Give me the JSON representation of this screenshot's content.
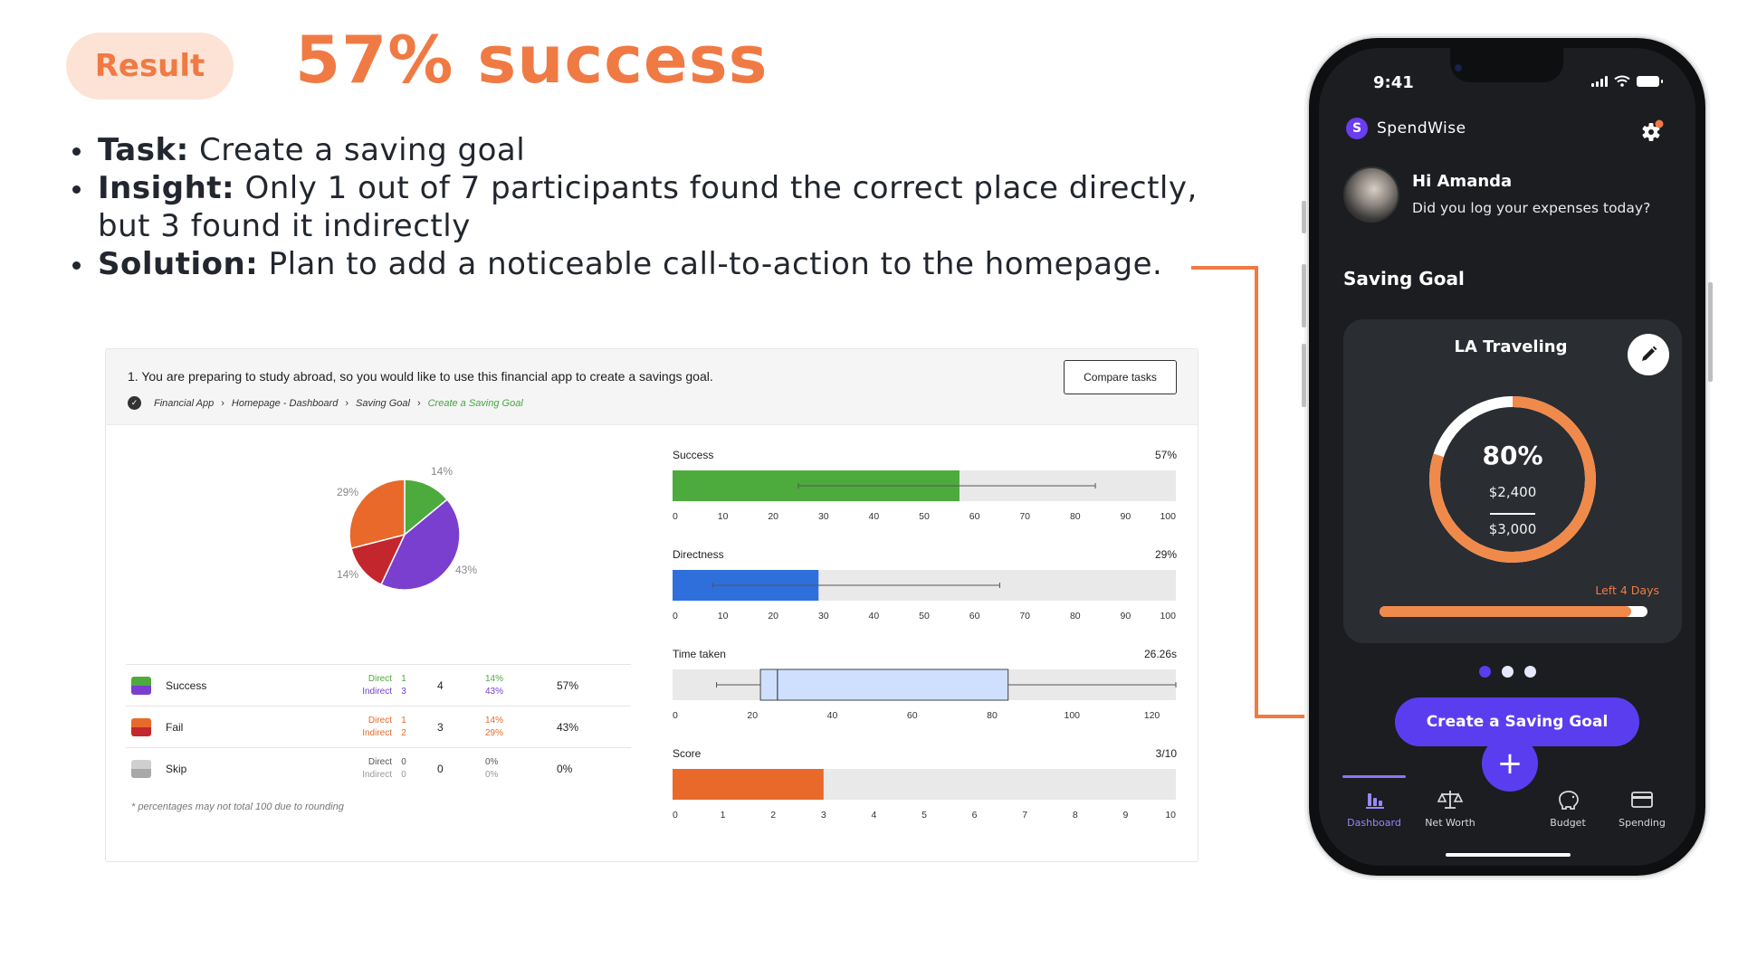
{
  "header": {
    "pill": "Result",
    "headline": "57% success"
  },
  "bullets": [
    {
      "label": "Task:",
      "text": " Create a saving goal"
    },
    {
      "label": "Insight:",
      "text": " Only 1 out of 7 participants found the correct place directly, but 3 found it indirectly"
    },
    {
      "label": "Solution:",
      "text": " Plan to add a noticeable call-to-action to the homepage."
    }
  ],
  "report": {
    "question": "1. You are preparing to study abroad, so you would like to use this financial app to create a savings goal.",
    "compare_label": "Compare tasks",
    "breadcrumb": [
      "Financial App",
      "Homepage - Dashboard",
      "Saving Goal",
      "Create a Saving Goal"
    ],
    "table": [
      {
        "name": "Success",
        "color_top": "#4daa3d",
        "color_bottom": "#7a3fcf",
        "direct_label": "Direct",
        "indirect_label": "Indirect",
        "direct_count": "1",
        "indirect_count": "3",
        "total": "4",
        "direct_pct": "14%",
        "indirect_pct": "43%",
        "overall": "57%",
        "direct_color": "#4daa3d",
        "indirect_color": "#7a3fcf"
      },
      {
        "name": "Fail",
        "color_top": "#e8692a",
        "color_bottom": "#c4262e",
        "direct_label": "Direct",
        "indirect_label": "Indirect",
        "direct_count": "1",
        "indirect_count": "2",
        "total": "3",
        "direct_pct": "14%",
        "indirect_pct": "29%",
        "overall": "43%",
        "direct_color": "#e8692a",
        "indirect_color": "#e8692a"
      },
      {
        "name": "Skip",
        "color_top": "#cfcfcf",
        "color_bottom": "#a8a8a8",
        "direct_label": "Direct",
        "indirect_label": "Indirect",
        "direct_count": "0",
        "indirect_count": "0",
        "total": "0",
        "direct_pct": "0%",
        "indirect_pct": "0%",
        "overall": "0%",
        "direct_color": "#555555",
        "indirect_color": "#999999"
      }
    ],
    "note": "* percentages may not total 100 due to rounding",
    "metrics": {
      "success": {
        "label": "Success",
        "value": "57%"
      },
      "directness": {
        "label": "Directness",
        "value": "29%"
      },
      "time": {
        "label": "Time taken",
        "value": "26.26s"
      },
      "score": {
        "label": "Score",
        "value": "3/10"
      }
    }
  },
  "chart_data": [
    {
      "type": "pie",
      "slices": [
        {
          "label": "14%",
          "value": 14,
          "color": "#4daa3d"
        },
        {
          "label": "43%",
          "value": 43,
          "color": "#7a3fcf"
        },
        {
          "label": "14%",
          "value": 14,
          "color": "#c4262e"
        },
        {
          "label": "29%",
          "value": 29,
          "color": "#e8692a"
        }
      ]
    },
    {
      "type": "bar",
      "title": "Success",
      "value": 57,
      "xlim": [
        0,
        100
      ],
      "ticks": [
        0,
        10,
        20,
        30,
        40,
        50,
        60,
        70,
        80,
        90,
        100
      ],
      "whisker": [
        25,
        84
      ],
      "color": "#4daa3d"
    },
    {
      "type": "bar",
      "title": "Directness",
      "value": 29,
      "xlim": [
        0,
        100
      ],
      "ticks": [
        0,
        10,
        20,
        30,
        40,
        50,
        60,
        70,
        80,
        90,
        100
      ],
      "whisker": [
        8,
        65
      ],
      "color": "#2f6fdc"
    },
    {
      "type": "box",
      "title": "Time taken",
      "xlim": [
        0,
        126
      ],
      "ticks": [
        0,
        20,
        40,
        60,
        80,
        100,
        120
      ],
      "whisker": [
        11,
        126
      ],
      "box": [
        22,
        84
      ],
      "median": 26.26,
      "color": "#cfe0ff"
    },
    {
      "type": "bar",
      "title": "Score",
      "value": 3,
      "xlim": [
        0,
        10
      ],
      "ticks": [
        0,
        1,
        2,
        3,
        4,
        5,
        6,
        7,
        8,
        9,
        10
      ],
      "color": "#e8692a"
    }
  ],
  "phone": {
    "time": "9:41",
    "brand_initial": "S",
    "brand": "SpendWise",
    "greeting": "Hi Amanda",
    "subtext": "Did you log your expenses today?",
    "section": "Saving Goal",
    "goal": {
      "name": "LA Traveling",
      "percent_label": "80%",
      "progress": 0.8,
      "saved": "$2,400",
      "target": "$3,000",
      "days_left": "Left 4 Days",
      "bar_progress": 0.94
    },
    "cta": "Create a Saving Goal",
    "fab": "+",
    "tabs": [
      "Dashboard",
      "Net Worth",
      "Budget",
      "Spending"
    ],
    "accent": "#5b3df0",
    "ring_color": "#f08a4b"
  }
}
